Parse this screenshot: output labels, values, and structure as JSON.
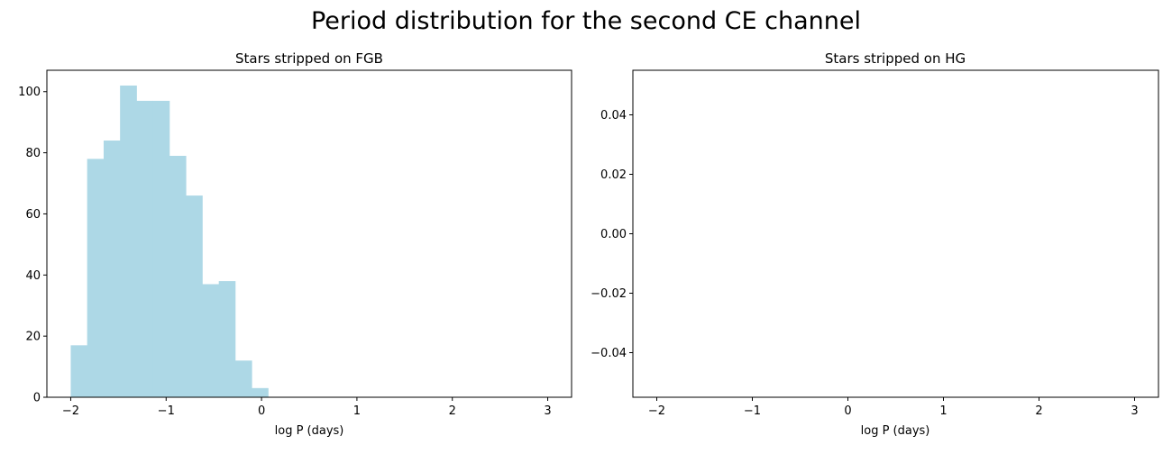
{
  "figure": {
    "suptitle": "Period distribution for the second CE channel"
  },
  "chart_data": [
    {
      "type": "bar",
      "title": "Stars stripped on FGB",
      "xlabel": "log P (days)",
      "ylabel": "",
      "xlim": [
        -2.25,
        3.25
      ],
      "ylim": [
        0,
        107
      ],
      "xticks": [
        -2,
        -1,
        0,
        1,
        2,
        3
      ],
      "xtick_labels": [
        "−2",
        "−1",
        "0",
        "1",
        "2",
        "3"
      ],
      "yticks": [
        0,
        20,
        40,
        60,
        80,
        100
      ],
      "ytick_labels": [
        "0",
        "20",
        "40",
        "60",
        "80",
        "100"
      ],
      "color": "#add8e6",
      "grid": false,
      "bin_edges": [
        -2.0,
        -1.828,
        -1.655,
        -1.483,
        -1.31,
        -1.138,
        -0.966,
        -0.793,
        -0.621,
        -0.448,
        -0.276,
        -0.103,
        0.069
      ],
      "values": [
        17,
        78,
        84,
        102,
        97,
        97,
        79,
        66,
        37,
        38,
        12,
        3
      ]
    },
    {
      "type": "bar",
      "title": "Stars stripped on HG",
      "xlabel": "log P (days)",
      "ylabel": "",
      "xlim": [
        -2.25,
        3.25
      ],
      "ylim": [
        -0.055,
        0.055
      ],
      "xticks": [
        -2,
        -1,
        0,
        1,
        2,
        3
      ],
      "xtick_labels": [
        "−2",
        "−1",
        "0",
        "1",
        "2",
        "3"
      ],
      "yticks": [
        -0.04,
        -0.02,
        0.0,
        0.02,
        0.04
      ],
      "ytick_labels": [
        "−0.04",
        "−0.02",
        "0.00",
        "0.02",
        "0.04"
      ],
      "color": "#add8e6",
      "grid": false,
      "bin_edges": [],
      "values": []
    }
  ]
}
